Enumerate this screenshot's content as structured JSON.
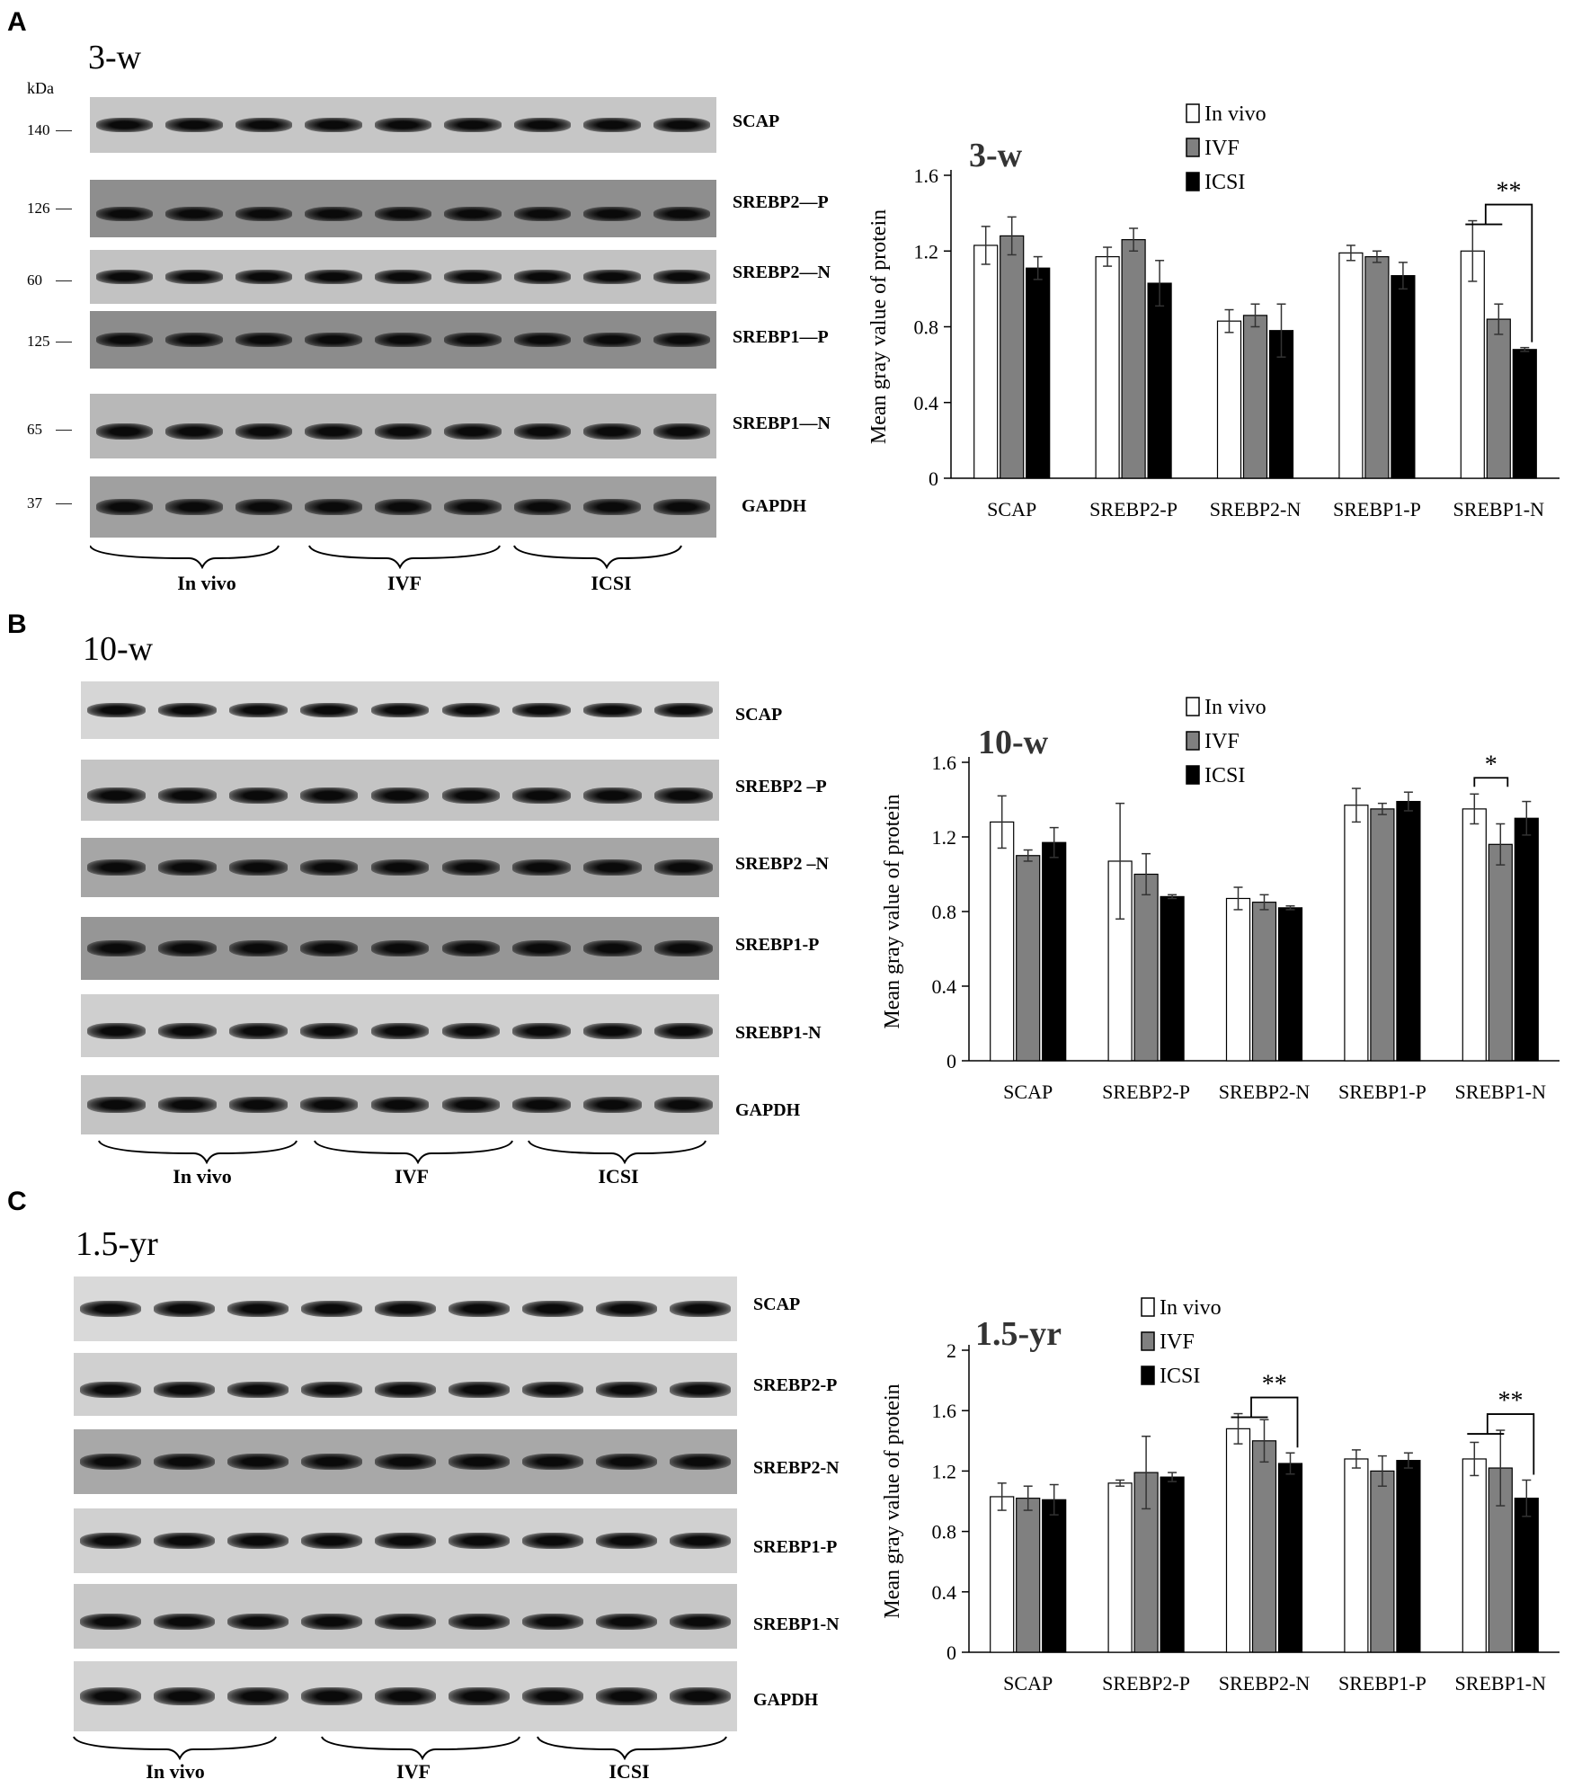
{
  "panels": [
    {
      "letter": "A",
      "blot_title": "3-w",
      "kda_label": "kDa",
      "bands": [
        {
          "label": "SCAP",
          "mw": "140"
        },
        {
          "label": "SREBP2—P",
          "mw": "126"
        },
        {
          "label": "SREBP2—N",
          "mw": "60"
        },
        {
          "label": "SREBP1—P",
          "mw": "125"
        },
        {
          "label": "SREBP1—N",
          "mw": "65"
        },
        {
          "label": "GAPDH",
          "mw": "37"
        }
      ],
      "groups": [
        "In vivo",
        "IVF",
        "ICSI"
      ]
    },
    {
      "letter": "B",
      "blot_title": "10-w",
      "bands": [
        {
          "label": "SCAP"
        },
        {
          "label": "SREBP2 –P"
        },
        {
          "label": "SREBP2 –N"
        },
        {
          "label": "SREBP1-P"
        },
        {
          "label": "SREBP1-N"
        },
        {
          "label": "GAPDH"
        }
      ],
      "groups": [
        "In vivo",
        "IVF",
        "ICSI"
      ]
    },
    {
      "letter": "C",
      "blot_title": "1.5-yr",
      "bands": [
        {
          "label": "SCAP"
        },
        {
          "label": "SREBP2-P"
        },
        {
          "label": "SREBP2-N"
        },
        {
          "label": "SREBP1-P"
        },
        {
          "label": "SREBP1-N"
        },
        {
          "label": "GAPDH"
        }
      ],
      "groups": [
        "In vivo",
        "IVF",
        "ICSI"
      ]
    }
  ],
  "colors": {
    "in_vivo": "#ffffff",
    "ivf": "#808080",
    "icsi": "#000000"
  },
  "chart_data": [
    {
      "type": "bar",
      "title": "3-w",
      "ylabel": "Mean gray value of protein",
      "ylim": [
        0,
        1.6
      ],
      "yticks": [
        "0",
        "0.4",
        "0.8",
        "1.2",
        "1.6"
      ],
      "yticks_values": [
        0,
        0.4,
        0.8,
        1.2,
        1.6
      ],
      "categories": [
        "SCAP",
        "SREBP2-P",
        "SREBP2-N",
        "SREBP1-P",
        "SREBP1-N"
      ],
      "legend": "top-center",
      "series": [
        {
          "name": "In vivo",
          "values": [
            1.23,
            1.17,
            0.83,
            1.19,
            1.2
          ],
          "errors": [
            0.1,
            0.05,
            0.06,
            0.04,
            0.16
          ]
        },
        {
          "name": "IVF",
          "values": [
            1.28,
            1.26,
            0.86,
            1.17,
            0.84
          ],
          "errors": [
            0.1,
            0.06,
            0.06,
            0.03,
            0.08
          ]
        },
        {
          "name": "ICSI",
          "values": [
            1.11,
            1.03,
            0.78,
            1.07,
            0.68
          ],
          "errors": [
            0.06,
            0.12,
            0.14,
            0.07,
            0.01
          ]
        }
      ],
      "annotations": [
        {
          "text": "**",
          "category": 4
        }
      ]
    },
    {
      "type": "bar",
      "title": "10-w",
      "ylabel": "Mean gray value of protein",
      "ylim": [
        0,
        1.6
      ],
      "yticks": [
        "0",
        "0.4",
        "0.8",
        "1.2",
        "1.6"
      ],
      "yticks_values": [
        0,
        0.4,
        0.8,
        1.2,
        1.6
      ],
      "categories": [
        "SCAP",
        "SREBP2-P",
        "SREBP2-N",
        "SREBP1-P",
        "SREBP1-N"
      ],
      "legend": "top-center",
      "series": [
        {
          "name": "In vivo",
          "values": [
            1.28,
            1.07,
            0.87,
            1.37,
            1.35
          ],
          "errors": [
            0.14,
            0.31,
            0.06,
            0.09,
            0.08
          ]
        },
        {
          "name": "IVF",
          "values": [
            1.1,
            1.0,
            0.85,
            1.35,
            1.16
          ],
          "errors": [
            0.03,
            0.11,
            0.04,
            0.03,
            0.11
          ]
        },
        {
          "name": "ICSI",
          "values": [
            1.17,
            0.88,
            0.82,
            1.39,
            1.3
          ],
          "errors": [
            0.08,
            0.01,
            0.01,
            0.05,
            0.09
          ]
        }
      ],
      "annotations": [
        {
          "text": "*",
          "category": 4
        }
      ]
    },
    {
      "type": "bar",
      "title": "1.5-yr",
      "ylabel": "Mean gray value of protein",
      "ylim": [
        0,
        2
      ],
      "yticks": [
        "0",
        "0.4",
        "0.8",
        "1.2",
        "1.6",
        "2"
      ],
      "yticks_values": [
        0,
        0.4,
        0.8,
        1.2,
        1.6,
        2
      ],
      "categories": [
        "SCAP",
        "SREBP2-P",
        "SREBP2-N",
        "SREBP1-P",
        "SREBP1-N"
      ],
      "legend": "top-center",
      "series": [
        {
          "name": "In vivo",
          "values": [
            1.03,
            1.12,
            1.48,
            1.28,
            1.28
          ],
          "errors": [
            0.09,
            0.02,
            0.1,
            0.06,
            0.11
          ]
        },
        {
          "name": "IVF",
          "values": [
            1.02,
            1.19,
            1.4,
            1.2,
            1.22
          ],
          "errors": [
            0.08,
            0.24,
            0.14,
            0.1,
            0.25
          ]
        },
        {
          "name": "ICSI",
          "values": [
            1.01,
            1.16,
            1.25,
            1.27,
            1.02
          ],
          "errors": [
            0.1,
            0.03,
            0.07,
            0.05,
            0.12
          ]
        }
      ],
      "annotations": [
        {
          "text": "**",
          "category": 2
        },
        {
          "text": "**",
          "category": 4
        }
      ]
    }
  ]
}
